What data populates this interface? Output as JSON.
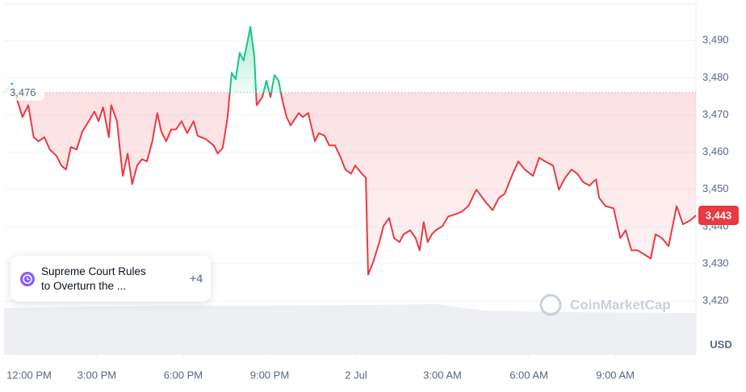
{
  "chart_data": {
    "type": "line",
    "currency": "USD",
    "up_color": "#16c784",
    "down_color": "#ea3943",
    "baseline": {
      "value": 3476,
      "label": "3,476"
    },
    "current_price": {
      "value": 3443,
      "label": "3,443"
    },
    "xlim": [
      -0.22,
      23.8
    ],
    "xticks": [
      {
        "value": 0,
        "label": "12:00 PM"
      },
      {
        "value": 3,
        "label": "3:00 PM"
      },
      {
        "value": 6,
        "label": "6:00 PM"
      },
      {
        "value": 9,
        "label": "9:00 PM"
      },
      {
        "value": 12,
        "label": "2 Jul"
      },
      {
        "value": 15,
        "label": "3:00 AM"
      },
      {
        "value": 18,
        "label": "6:00 AM"
      },
      {
        "value": 21,
        "label": "9:00 AM"
      }
    ],
    "ylim": [
      3405.5,
      3499.8
    ],
    "yticks": [
      {
        "value": 3420,
        "label": "3,420"
      },
      {
        "value": 3430,
        "label": "3,430"
      },
      {
        "value": 3440,
        "label": "3,440"
      },
      {
        "value": 3450,
        "label": "3,450"
      },
      {
        "value": 3460,
        "label": "3,460"
      },
      {
        "value": 3470,
        "label": "3,470"
      },
      {
        "value": 3480,
        "label": "3,480"
      },
      {
        "value": 3490,
        "label": "3,490"
      }
    ],
    "grid": true,
    "x": [
      -0.22,
      0.06,
      0.25,
      0.42,
      0.62,
      0.81,
      0.98,
      1.18,
      1.37,
      1.6,
      1.77,
      1.93,
      2.1,
      2.3,
      2.5,
      2.72,
      2.92,
      3.06,
      3.22,
      3.42,
      3.5,
      3.7,
      3.9,
      4.07,
      4.23,
      4.4,
      4.57,
      4.74,
      4.93,
      5.1,
      5.24,
      5.41,
      5.58,
      5.75,
      5.94,
      6.14,
      6.36,
      6.5,
      6.78,
      7.06,
      7.2,
      7.37,
      7.54,
      7.68,
      7.82,
      7.96,
      8.1,
      8.24,
      8.33,
      8.47,
      8.55,
      8.75,
      8.89,
      9.03,
      9.17,
      9.31,
      9.45,
      9.59,
      9.73,
      10.01,
      10.15,
      10.34,
      10.57,
      10.71,
      10.91,
      11.07,
      11.27,
      11.47,
      11.63,
      11.83,
      11.97,
      12.2,
      12.34,
      12.42,
      12.59,
      12.81,
      12.95,
      13.15,
      13.32,
      13.51,
      13.65,
      13.88,
      14.07,
      14.21,
      14.35,
      14.49,
      14.63,
      14.77,
      15.0,
      15.2,
      15.48,
      15.67,
      15.9,
      16.18,
      16.46,
      16.74,
      16.96,
      17.16,
      17.44,
      17.63,
      17.86,
      18.14,
      18.36,
      18.56,
      18.84,
      19.04,
      19.26,
      19.48,
      19.68,
      19.88,
      20.1,
      20.33,
      20.44,
      20.66,
      20.94,
      21.17,
      21.36,
      21.56,
      21.78,
      22.01,
      22.23,
      22.4,
      22.62,
      22.85,
      23.13,
      23.35,
      23.61,
      23.8
    ],
    "values": [
      3475.9,
      3478.5,
      3473.7,
      3469.4,
      3472.6,
      3464.0,
      3462.9,
      3464.0,
      3460.7,
      3459.0,
      3456.4,
      3455.3,
      3461.4,
      3460.7,
      3465.5,
      3468.3,
      3470.9,
      3468.3,
      3472.0,
      3464.0,
      3472.6,
      3468.3,
      3453.6,
      3459.6,
      3451.4,
      3456.4,
      3458.1,
      3457.5,
      3462.9,
      3470.5,
      3465.5,
      3462.9,
      3466.1,
      3466.1,
      3468.3,
      3465.1,
      3468.3,
      3464.4,
      3463.5,
      3461.8,
      3459.6,
      3461.1,
      3469.4,
      3481.3,
      3479.6,
      3486.7,
      3484.6,
      3490.0,
      3493.7,
      3485.7,
      3472.6,
      3474.8,
      3479.2,
      3474.8,
      3480.7,
      3479.2,
      3473.7,
      3469.4,
      3467.2,
      3470.5,
      3469.4,
      3470.5,
      3462.9,
      3465.1,
      3464.4,
      3461.8,
      3461.8,
      3458.5,
      3455.3,
      3454.2,
      3456.4,
      3454.2,
      3453.1,
      3427.1,
      3430.3,
      3435.8,
      3440.1,
      3442.3,
      3436.9,
      3435.8,
      3437.9,
      3439.0,
      3436.9,
      3433.6,
      3441.2,
      3435.8,
      3437.9,
      3439.0,
      3440.1,
      3442.7,
      3443.4,
      3444.0,
      3445.5,
      3449.9,
      3447.0,
      3444.4,
      3447.7,
      3448.8,
      3454.2,
      3457.5,
      3455.3,
      3453.6,
      3458.5,
      3457.5,
      3456.4,
      3449.9,
      3453.1,
      3455.3,
      3454.2,
      3452.0,
      3451.0,
      3452.7,
      3447.7,
      3445.5,
      3444.9,
      3436.9,
      3439.0,
      3433.6,
      3433.6,
      3432.5,
      3431.4,
      3437.9,
      3436.9,
      3434.7,
      3445.5,
      3440.6,
      3441.7,
      3443
    ]
  },
  "news": {
    "line1": "Supreme Court Rules",
    "line2": "to Overturn the ...",
    "more": "+4"
  },
  "watermark": "CoinMarketCap"
}
